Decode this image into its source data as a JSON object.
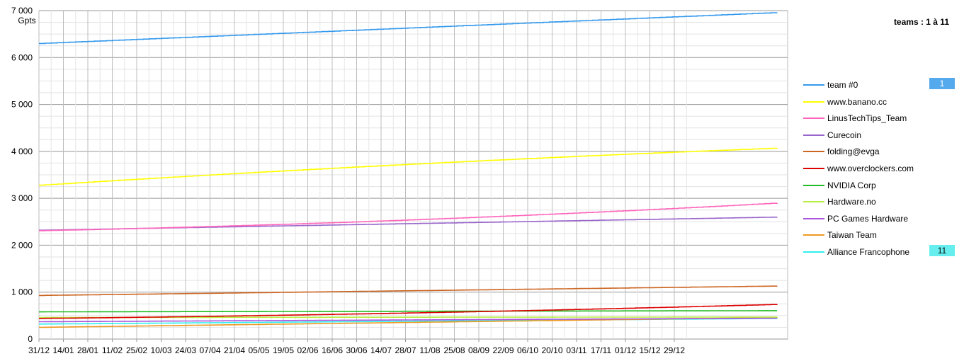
{
  "header": {
    "teams_label": "teams : 1 à 11"
  },
  "chart_data": {
    "type": "line",
    "ylabel": "Gpts",
    "ylim": [
      0,
      7000
    ],
    "yticks": [
      "0",
      "1 000",
      "2 000",
      "3 000",
      "4 000",
      "5 000",
      "6 000",
      "7 000"
    ],
    "yticks_values": [
      0,
      1000,
      2000,
      3000,
      4000,
      5000,
      6000,
      7000
    ],
    "x_labels": [
      "31/12",
      "14/01",
      "28/01",
      "11/02",
      "25/02",
      "10/03",
      "24/03",
      "07/04",
      "21/04",
      "05/05",
      "19/05",
      "02/06",
      "16/06",
      "30/06",
      "14/07",
      "28/07",
      "11/08",
      "25/08",
      "08/09",
      "22/09",
      "06/10",
      "20/10",
      "03/11",
      "17/11",
      "01/12",
      "15/12",
      "29/12"
    ],
    "grid": true,
    "legend_position": "right",
    "series": [
      {
        "name": "team #0",
        "color": "#3399ee",
        "start": 6300,
        "end": 6960,
        "curve": "linear",
        "badge": "1"
      },
      {
        "name": "www.banano.cc",
        "color": "#ffff00",
        "start": 3280,
        "end": 4070,
        "curve": "concave"
      },
      {
        "name": "LinusTechTips_Team",
        "color": "#ff66bb",
        "start": 2310,
        "end": 2900,
        "curve": "convex"
      },
      {
        "name": "Curecoin",
        "color": "#9966cc",
        "start": 2320,
        "end": 2600,
        "curve": "linear"
      },
      {
        "name": "folding@evga",
        "color": "#cc6622",
        "start": 930,
        "end": 1130,
        "curve": "linear"
      },
      {
        "name": "www.overclockers.com",
        "color": "#dd0000",
        "start": 440,
        "end": 740,
        "curve": "convex"
      },
      {
        "name": "NVIDIA Corp",
        "color": "#22bb22",
        "start": 580,
        "end": 605,
        "curve": "linear"
      },
      {
        "name": "Hardware.no",
        "color": "#bbee44",
        "start": 460,
        "end": 470,
        "curve": "linear"
      },
      {
        "name": "PC Games Hardware",
        "color": "#aa55dd",
        "start": 370,
        "end": 445,
        "curve": "linear"
      },
      {
        "name": "Taiwan Team",
        "color": "#ee9922",
        "start": 250,
        "end": 460,
        "curve": "linear"
      },
      {
        "name": "Alliance Francophone",
        "color": "#33eeee",
        "start": 320,
        "end": 440,
        "curve": "linear",
        "badge": "11"
      }
    ]
  }
}
